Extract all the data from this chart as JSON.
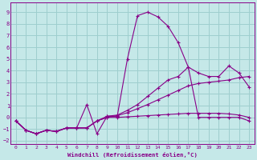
{
  "xlabel": "Windchill (Refroidissement éolien,°C)",
  "xlim": [
    -0.5,
    23.5
  ],
  "ylim": [
    -2.3,
    9.8
  ],
  "xticks": [
    0,
    1,
    2,
    3,
    4,
    5,
    6,
    7,
    8,
    9,
    10,
    11,
    12,
    13,
    14,
    15,
    16,
    17,
    18,
    19,
    20,
    21,
    22,
    23
  ],
  "yticks": [
    -2,
    -1,
    0,
    1,
    2,
    3,
    4,
    5,
    6,
    7,
    8,
    9
  ],
  "bg_color": "#c5e8e8",
  "grid_color": "#9ecece",
  "line_color": "#880088",
  "lines": [
    {
      "x": [
        0,
        1,
        2,
        3,
        4,
        5,
        6,
        7,
        8,
        9,
        10,
        11,
        12,
        13,
        14,
        15,
        16,
        17,
        18,
        19,
        20,
        21,
        22,
        23
      ],
      "y": [
        -0.3,
        -1.1,
        -1.4,
        -1.1,
        -1.2,
        -0.9,
        -0.9,
        1.1,
        -1.4,
        0.1,
        0.1,
        5.0,
        8.7,
        9.0,
        8.6,
        7.8,
        6.4,
        4.3,
        0.0,
        0.0,
        0.0,
        0.0,
        0.0,
        -0.3
      ]
    },
    {
      "x": [
        0,
        1,
        2,
        3,
        4,
        5,
        6,
        7,
        8,
        9,
        10,
        11,
        12,
        13,
        14,
        15,
        16,
        17,
        18,
        19,
        20,
        21,
        22,
        23
      ],
      "y": [
        -0.3,
        -1.1,
        -1.4,
        -1.1,
        -1.2,
        -0.9,
        -0.9,
        -0.9,
        -0.3,
        0.1,
        0.2,
        0.6,
        1.1,
        1.8,
        2.5,
        3.2,
        3.5,
        4.3,
        3.8,
        3.5,
        3.5,
        4.4,
        3.8,
        2.6
      ]
    },
    {
      "x": [
        0,
        1,
        2,
        3,
        4,
        5,
        6,
        7,
        8,
        9,
        10,
        11,
        12,
        13,
        14,
        15,
        16,
        17,
        18,
        19,
        20,
        21,
        22,
        23
      ],
      "y": [
        -0.3,
        -1.1,
        -1.4,
        -1.1,
        -1.2,
        -0.9,
        -0.9,
        -0.9,
        -0.3,
        0.0,
        0.15,
        0.4,
        0.75,
        1.1,
        1.5,
        1.9,
        2.3,
        2.7,
        2.9,
        3.0,
        3.1,
        3.2,
        3.4,
        3.5
      ]
    },
    {
      "x": [
        0,
        1,
        2,
        3,
        4,
        5,
        6,
        7,
        8,
        9,
        10,
        11,
        12,
        13,
        14,
        15,
        16,
        17,
        18,
        19,
        20,
        21,
        22,
        23
      ],
      "y": [
        -0.3,
        -1.1,
        -1.4,
        -1.1,
        -1.2,
        -0.9,
        -0.9,
        -0.9,
        -0.3,
        0.0,
        0.0,
        0.05,
        0.1,
        0.15,
        0.2,
        0.25,
        0.3,
        0.35,
        0.35,
        0.35,
        0.35,
        0.3,
        0.2,
        0.0
      ]
    }
  ]
}
